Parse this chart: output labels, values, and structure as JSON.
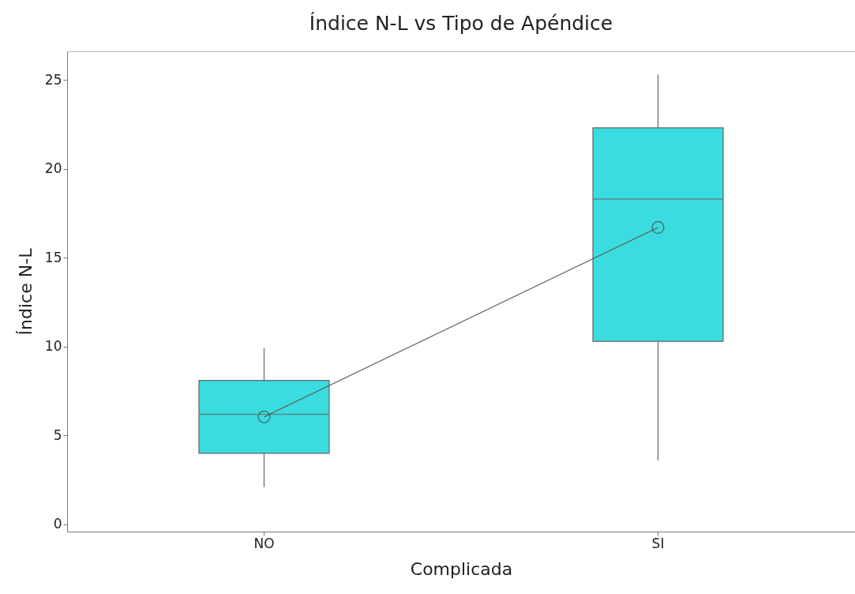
{
  "chart_data": {
    "type": "box",
    "title": "Índice N-L vs Tipo de Apéndice",
    "xlabel": "Complicada",
    "ylabel": "Índice N-L",
    "categories": [
      "NO",
      "SI"
    ],
    "ylim": [
      -0.4,
      26.6
    ],
    "yticks": [
      0,
      5,
      10,
      15,
      20,
      25
    ],
    "grid": false,
    "marker": "circle",
    "series": [
      {
        "type": "box",
        "color": "#3bdcdf",
        "boxes": [
          {
            "low": 2.1,
            "q1": 4.0,
            "median": 6.2,
            "q3": 8.1,
            "high": 9.9
          },
          {
            "low": 3.6,
            "q1": 10.3,
            "median": 18.3,
            "q3": 22.3,
            "high": 25.3
          }
        ]
      },
      {
        "type": "line",
        "color": "#5a5a5a",
        "x": [
          "NO",
          "SI"
        ],
        "values": [
          6.05,
          16.7
        ]
      }
    ]
  }
}
